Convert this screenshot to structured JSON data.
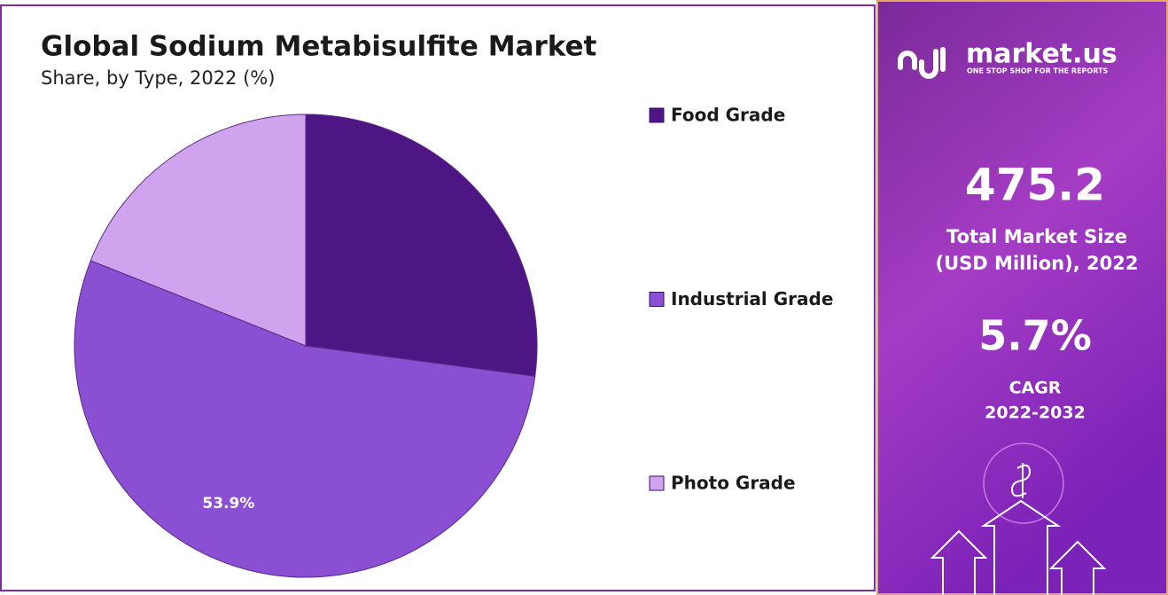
{
  "chart_data": {
    "type": "pie",
    "title": "Global Sodium Metabisulfite Market",
    "subtitle": "Share, by Type, 2022 (%)",
    "categories": [
      "Food Grade",
      "Industrial Grade",
      "Photo Grade"
    ],
    "values": [
      27.1,
      53.9,
      19.0
    ],
    "value_labels": [
      null,
      "53.9%",
      null
    ],
    "colors": [
      "#4e1585",
      "#8a4fd3",
      "#d0a3ee"
    ]
  },
  "panel": {
    "brand": "market.us",
    "tagline": "ONE STOP SHOP FOR THE REPORTS",
    "market_size": "475.2",
    "market_size_label_1": "Total Market Size",
    "market_size_label_2": "(USD Million), 2022",
    "cagr": "5.7%",
    "cagr_label_1": "CAGR",
    "cagr_label_2": "2022-2032"
  }
}
